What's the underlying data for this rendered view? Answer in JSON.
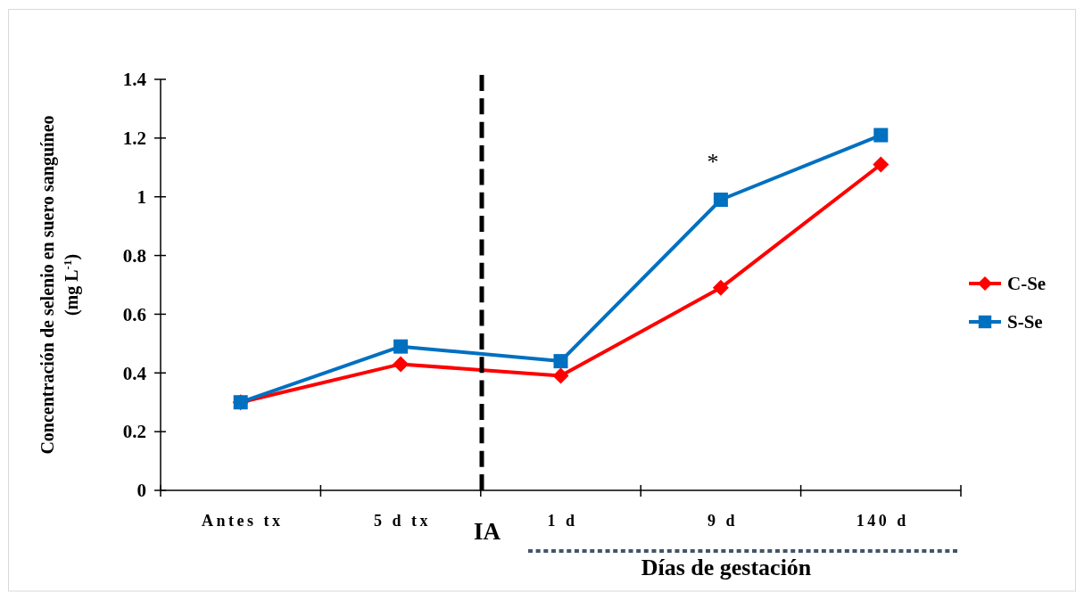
{
  "chart_data": {
    "type": "line",
    "ylabel": "Concentración de selenio en suero sanguíneo\n(mg L$^{-1}$)",
    "categories": [
      "Antes tx",
      "5 d tx",
      "1 d",
      "9 d",
      "140 d"
    ],
    "series": [
      {
        "name": "C-Se",
        "color": "#ff0000",
        "marker": "diamond",
        "values": [
          0.3,
          0.43,
          0.39,
          0.69,
          1.11
        ]
      },
      {
        "name": "S-Se",
        "color": "#0070c0",
        "marker": "square",
        "values": [
          0.3,
          0.49,
          0.44,
          0.99,
          1.21
        ]
      }
    ],
    "ylim": [
      0,
      1.4
    ],
    "yticks": [
      0,
      0.2,
      0.4,
      0.6,
      0.8,
      1,
      1.2,
      1.4
    ],
    "annotations": [
      "*",
      "IA",
      "Días de gestación"
    ],
    "legend": "right",
    "line_style": "solid"
  }
}
